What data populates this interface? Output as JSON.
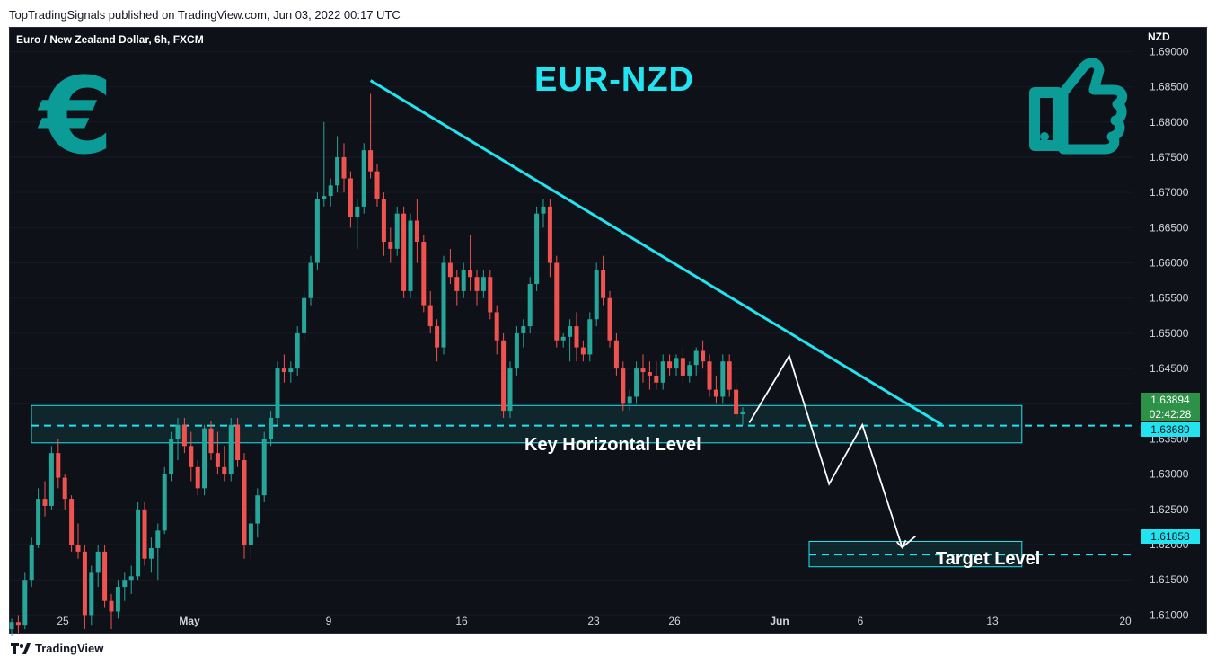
{
  "header": {
    "published": "TopTradingSignals published on TradingView.com, Jun 03, 2022 00:17 UTC"
  },
  "footer": {
    "brand": "TradingView"
  },
  "chart_data": {
    "type": "candlestick",
    "symbol": "Euro / New Zealand Dollar, 6h, FXCM",
    "title": "EUR-NZD",
    "currency": "NZD",
    "colors": {
      "up": "#26a69a",
      "down": "#ef5350",
      "trend": "#22e4f0",
      "zone": "#22e4f0",
      "projection": "#ffffff",
      "icons": "#0b9c98"
    },
    "icons": [
      "euro-icon",
      "thumbs-up-icon"
    ],
    "ylim": [
      1.6075,
      1.6935
    ],
    "y_ticks": [
      1.69,
      1.685,
      1.68,
      1.675,
      1.67,
      1.665,
      1.66,
      1.655,
      1.65,
      1.645,
      1.64,
      1.635,
      1.63,
      1.625,
      1.62,
      1.615,
      1.61
    ],
    "x_ticks": [
      "25",
      "May",
      "9",
      "16",
      "23",
      "26",
      "Jun",
      "6",
      "13",
      "20"
    ],
    "candles": [
      [
        1.608,
        1.6095,
        1.607,
        1.609
      ],
      [
        1.609,
        1.61,
        1.6075,
        1.6085
      ],
      [
        1.6085,
        1.616,
        1.608,
        1.615
      ],
      [
        1.615,
        1.621,
        1.614,
        1.62
      ],
      [
        1.62,
        1.628,
        1.6195,
        1.6265
      ],
      [
        1.6265,
        1.629,
        1.624,
        1.6255
      ],
      [
        1.6255,
        1.634,
        1.625,
        1.633
      ],
      [
        1.633,
        1.635,
        1.628,
        1.6295
      ],
      [
        1.6295,
        1.63,
        1.625,
        1.6265
      ],
      [
        1.6265,
        1.627,
        1.619,
        1.62
      ],
      [
        1.62,
        1.623,
        1.618,
        1.619
      ],
      [
        1.619,
        1.62,
        1.608,
        1.61
      ],
      [
        1.61,
        1.617,
        1.6085,
        1.616
      ],
      [
        1.616,
        1.62,
        1.614,
        1.619
      ],
      [
        1.619,
        1.62,
        1.611,
        1.612
      ],
      [
        1.612,
        1.613,
        1.608,
        1.6105
      ],
      [
        1.6105,
        1.615,
        1.6095,
        1.614
      ],
      [
        1.614,
        1.616,
        1.612,
        1.615
      ],
      [
        1.615,
        1.617,
        1.613,
        1.6155
      ],
      [
        1.6155,
        1.626,
        1.615,
        1.625
      ],
      [
        1.625,
        1.626,
        1.617,
        1.618
      ],
      [
        1.618,
        1.621,
        1.616,
        1.6195
      ],
      [
        1.6195,
        1.623,
        1.615,
        1.622
      ],
      [
        1.622,
        1.631,
        1.6215,
        1.63
      ],
      [
        1.63,
        1.636,
        1.629,
        1.635
      ],
      [
        1.635,
        1.638,
        1.632,
        1.637
      ],
      [
        1.637,
        1.638,
        1.633,
        1.634
      ],
      [
        1.634,
        1.636,
        1.629,
        1.631
      ],
      [
        1.631,
        1.632,
        1.627,
        1.628
      ],
      [
        1.628,
        1.637,
        1.627,
        1.6365
      ],
      [
        1.6365,
        1.6375,
        1.632,
        1.633
      ],
      [
        1.633,
        1.636,
        1.63,
        1.631
      ],
      [
        1.631,
        1.634,
        1.629,
        1.63
      ],
      [
        1.63,
        1.638,
        1.629,
        1.637
      ],
      [
        1.637,
        1.638,
        1.631,
        1.632
      ],
      [
        1.632,
        1.633,
        1.618,
        1.62
      ],
      [
        1.62,
        1.624,
        1.618,
        1.623
      ],
      [
        1.623,
        1.628,
        1.621,
        1.627
      ],
      [
        1.627,
        1.636,
        1.626,
        1.635
      ],
      [
        1.635,
        1.639,
        1.634,
        1.638
      ],
      [
        1.638,
        1.646,
        1.637,
        1.645
      ],
      [
        1.645,
        1.647,
        1.643,
        1.6445
      ],
      [
        1.6445,
        1.646,
        1.643,
        1.645
      ],
      [
        1.645,
        1.651,
        1.644,
        1.65
      ],
      [
        1.65,
        1.656,
        1.649,
        1.655
      ],
      [
        1.655,
        1.661,
        1.654,
        1.66
      ],
      [
        1.66,
        1.67,
        1.659,
        1.669
      ],
      [
        1.669,
        1.68,
        1.668,
        1.6695
      ],
      [
        1.6695,
        1.672,
        1.668,
        1.671
      ],
      [
        1.671,
        1.678,
        1.67,
        1.675
      ],
      [
        1.675,
        1.677,
        1.67,
        1.672
      ],
      [
        1.672,
        1.673,
        1.665,
        1.6665
      ],
      [
        1.6665,
        1.669,
        1.662,
        1.668
      ],
      [
        1.668,
        1.677,
        1.667,
        1.676
      ],
      [
        1.676,
        1.684,
        1.672,
        1.673
      ],
      [
        1.673,
        1.674,
        1.668,
        1.669
      ],
      [
        1.669,
        1.67,
        1.661,
        1.663
      ],
      [
        1.663,
        1.665,
        1.66,
        1.662
      ],
      [
        1.662,
        1.668,
        1.661,
        1.667
      ],
      [
        1.667,
        1.668,
        1.655,
        1.656
      ],
      [
        1.656,
        1.667,
        1.655,
        1.666
      ],
      [
        1.666,
        1.669,
        1.66,
        1.663
      ],
      [
        1.663,
        1.664,
        1.653,
        1.654
      ],
      [
        1.654,
        1.656,
        1.65,
        1.651
      ],
      [
        1.651,
        1.652,
        1.646,
        1.648
      ],
      [
        1.648,
        1.661,
        1.647,
        1.66
      ],
      [
        1.66,
        1.662,
        1.657,
        1.658
      ],
      [
        1.658,
        1.659,
        1.654,
        1.656
      ],
      [
        1.656,
        1.66,
        1.655,
        1.659
      ],
      [
        1.659,
        1.664,
        1.656,
        1.658
      ],
      [
        1.658,
        1.659,
        1.654,
        1.656
      ],
      [
        1.656,
        1.659,
        1.655,
        1.658
      ],
      [
        1.658,
        1.659,
        1.652,
        1.653
      ],
      [
        1.653,
        1.654,
        1.647,
        1.649
      ],
      [
        1.649,
        1.65,
        1.638,
        1.639
      ],
      [
        1.639,
        1.646,
        1.638,
        1.645
      ],
      [
        1.645,
        1.651,
        1.644,
        1.65
      ],
      [
        1.65,
        1.652,
        1.648,
        1.651
      ],
      [
        1.651,
        1.658,
        1.65,
        1.657
      ],
      [
        1.657,
        1.668,
        1.656,
        1.667
      ],
      [
        1.667,
        1.669,
        1.665,
        1.668
      ],
      [
        1.668,
        1.669,
        1.658,
        1.66
      ],
      [
        1.66,
        1.661,
        1.648,
        1.649
      ],
      [
        1.649,
        1.65,
        1.648,
        1.6495
      ],
      [
        1.6495,
        1.652,
        1.646,
        1.651
      ],
      [
        1.651,
        1.653,
        1.646,
        1.648
      ],
      [
        1.648,
        1.649,
        1.646,
        1.647
      ],
      [
        1.647,
        1.653,
        1.646,
        1.652
      ],
      [
        1.652,
        1.66,
        1.651,
        1.659
      ],
      [
        1.659,
        1.661,
        1.654,
        1.655
      ],
      [
        1.655,
        1.656,
        1.648,
        1.649
      ],
      [
        1.649,
        1.65,
        1.644,
        1.645
      ],
      [
        1.645,
        1.646,
        1.639,
        1.64
      ],
      [
        1.64,
        1.642,
        1.639,
        1.641
      ],
      [
        1.641,
        1.646,
        1.64,
        1.645
      ],
      [
        1.645,
        1.647,
        1.643,
        1.6445
      ],
      [
        1.6445,
        1.646,
        1.642,
        1.644
      ],
      [
        1.644,
        1.646,
        1.642,
        1.643
      ],
      [
        1.643,
        1.647,
        1.642,
        1.646
      ],
      [
        1.646,
        1.647,
        1.644,
        1.645
      ],
      [
        1.645,
        1.647,
        1.644,
        1.6465
      ],
      [
        1.6465,
        1.648,
        1.643,
        1.644
      ],
      [
        1.644,
        1.646,
        1.643,
        1.6455
      ],
      [
        1.6455,
        1.648,
        1.644,
        1.6475
      ],
      [
        1.6475,
        1.649,
        1.645,
        1.646
      ],
      [
        1.646,
        1.647,
        1.641,
        1.642
      ],
      [
        1.642,
        1.644,
        1.64,
        1.641
      ],
      [
        1.641,
        1.647,
        1.64,
        1.646
      ],
      [
        1.646,
        1.647,
        1.641,
        1.642
      ],
      [
        1.642,
        1.643,
        1.638,
        1.6385
      ],
      [
        1.6385,
        1.6395,
        1.637,
        1.6389
      ]
    ],
    "trendline": {
      "from_candle": 54,
      "from_value": 1.6859,
      "to_candle": 140,
      "to_value": 1.637
    },
    "zones": [
      {
        "label": "Key Horizontal Level",
        "low": 1.63445,
        "high": 1.63975,
        "level": 1.63689,
        "from_candle": 0,
        "to_candle": 152
      },
      {
        "label": "Target Level",
        "low": 1.61685,
        "high": 1.62045,
        "level": 1.61858,
        "from_candle": 120,
        "to_candle": 152
      }
    ],
    "projection": [
      [
        111,
        1.6373
      ],
      [
        117,
        1.6468
      ],
      [
        123,
        1.6286
      ],
      [
        128,
        1.637
      ],
      [
        134,
        1.6196
      ],
      [
        136,
        1.6212
      ]
    ],
    "last_price": {
      "value": "1.63894",
      "countdown": "02:42:28"
    },
    "level_labels": [
      "1.63689",
      "1.61858"
    ]
  }
}
